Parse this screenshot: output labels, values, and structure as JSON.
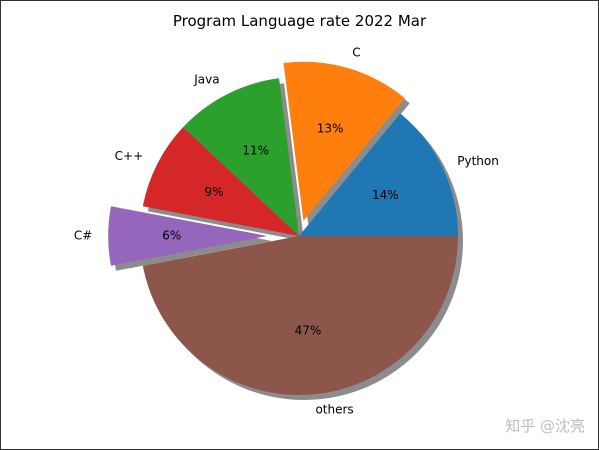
{
  "chart_data": {
    "type": "pie",
    "title": "Program Language rate 2022 Mar",
    "labels": [
      "Python",
      "C",
      "Java",
      "C++",
      "C#",
      "others"
    ],
    "values": [
      14,
      13,
      11,
      9,
      6,
      47
    ],
    "value_labels": [
      "14%",
      "13%",
      "11%",
      "9%",
      "6%",
      "47%"
    ],
    "explode": [
      0,
      0.1,
      0,
      0,
      0.2,
      0
    ],
    "colors": [
      "#1f77b4",
      "#ff7f0e",
      "#2ca02c",
      "#d62728",
      "#9467bd",
      "#8c564b"
    ],
    "start_angle": 0,
    "direction": "counterclockwise",
    "shadow": true,
    "legend": "none"
  },
  "watermark": "知乎 @沈亮"
}
